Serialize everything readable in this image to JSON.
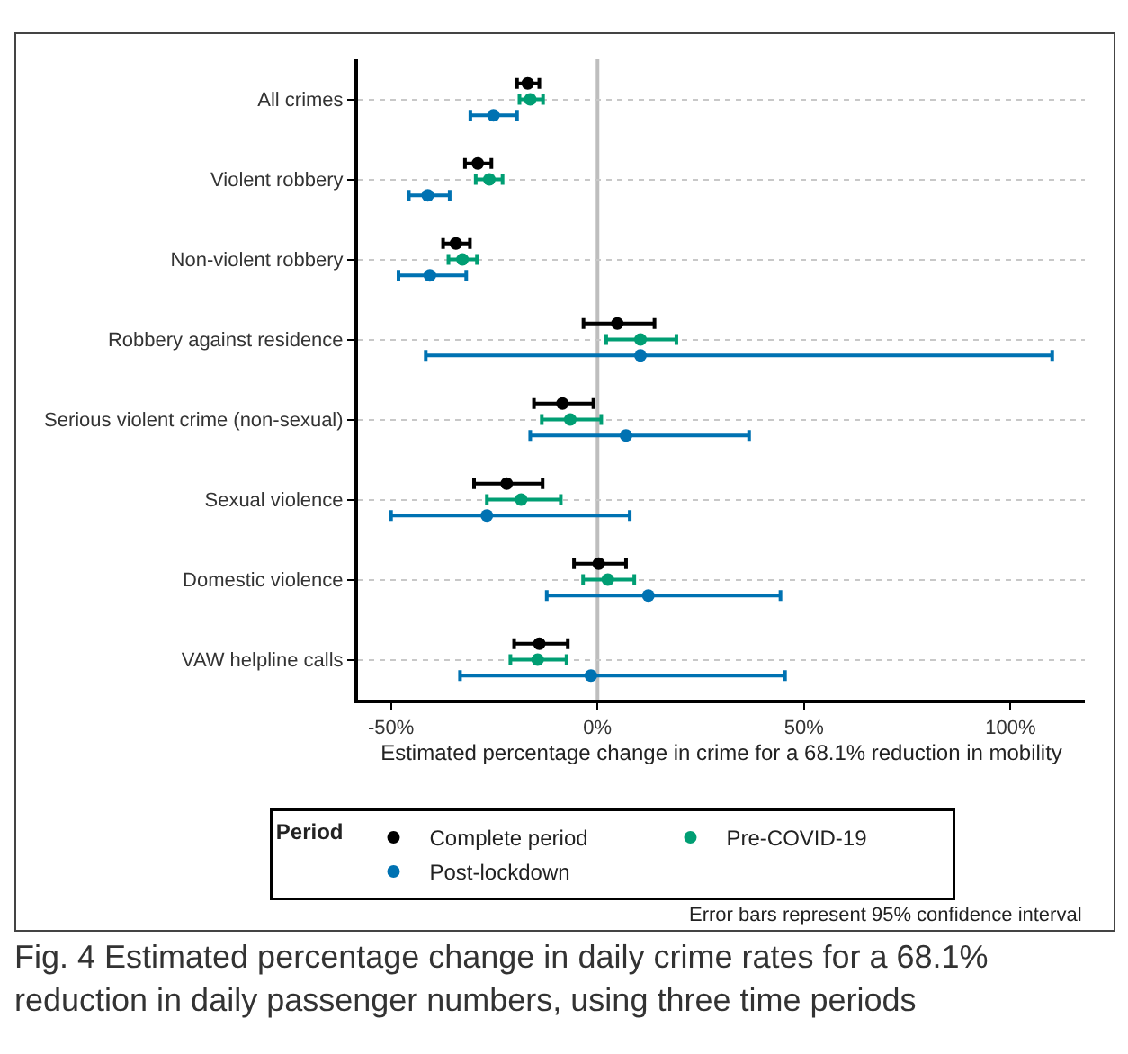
{
  "chart_data": {
    "type": "scatter",
    "orientation": "horizontal",
    "xlabel": "Estimated percentage change in crime for a 68.1% reduction in mobility",
    "legend_title": "Period",
    "legend": "bottom",
    "grid": "y",
    "marker": "circle",
    "categories": [
      "All crimes",
      "Violent robbery",
      "Non-violent robbery",
      "Robbery against residence",
      "Serious violent crime (non-sexual)",
      "Sexual violence",
      "Domestic violence",
      "VAW helpline calls"
    ],
    "xlim": [
      -58,
      118
    ],
    "xticks": [
      {
        "value": -50,
        "label": "-50%"
      },
      {
        "value": 0,
        "label": "0%"
      },
      {
        "value": 50,
        "label": "50%"
      },
      {
        "value": 100,
        "label": "100%"
      }
    ],
    "series": [
      {
        "name": "Complete period",
        "color": "#000000",
        "values": [
          -16.9,
          -29.0,
          -34.3,
          4.8,
          -8.5,
          -22.0,
          0.3,
          -14.1
        ],
        "errors": [
          [
            -19.5,
            -14.1
          ],
          [
            -32.1,
            -25.7
          ],
          [
            -37.4,
            -30.9
          ],
          [
            -3.4,
            13.8
          ],
          [
            -15.4,
            -1.0
          ],
          [
            -29.9,
            -13.3
          ],
          [
            -5.7,
            6.9
          ],
          [
            -20.2,
            -7.2
          ]
        ]
      },
      {
        "name": "Pre-COVID-19",
        "color": "#009e73",
        "values": [
          -16.3,
          -26.2,
          -32.7,
          10.4,
          -6.6,
          -18.5,
          2.5,
          -14.5
        ],
        "errors": [
          [
            -18.9,
            -13.2
          ],
          [
            -29.5,
            -23.0
          ],
          [
            -36.1,
            -29.2
          ],
          [
            2.1,
            19.1
          ],
          [
            -13.5,
            0.9
          ],
          [
            -26.8,
            -8.9
          ],
          [
            -3.5,
            8.9
          ],
          [
            -21.1,
            -7.5
          ]
        ]
      },
      {
        "name": "Post-lockdown",
        "color": "#0072b2",
        "values": [
          -25.2,
          -41.1,
          -40.6,
          10.4,
          6.9,
          -26.8,
          12.3,
          -1.6
        ],
        "errors": [
          [
            -30.8,
            -19.5
          ],
          [
            -45.7,
            -35.8
          ],
          [
            -48.2,
            -31.8
          ],
          [
            -41.6,
            110.1
          ],
          [
            -16.3,
            36.7
          ],
          [
            -50.0,
            7.8
          ],
          [
            -12.3,
            44.3
          ],
          [
            -33.3,
            45.4
          ]
        ]
      }
    ],
    "ref_lines": [
      {
        "axis": "x",
        "value": 0,
        "color": "#bebebe"
      }
    ],
    "annotations": [
      "Error bars represent 95% confidence interval",
      "Fig. 4  Estimated percentage change in daily crime rates for a 68.1% reduction in daily passenger numbers, using three time periods"
    ]
  }
}
